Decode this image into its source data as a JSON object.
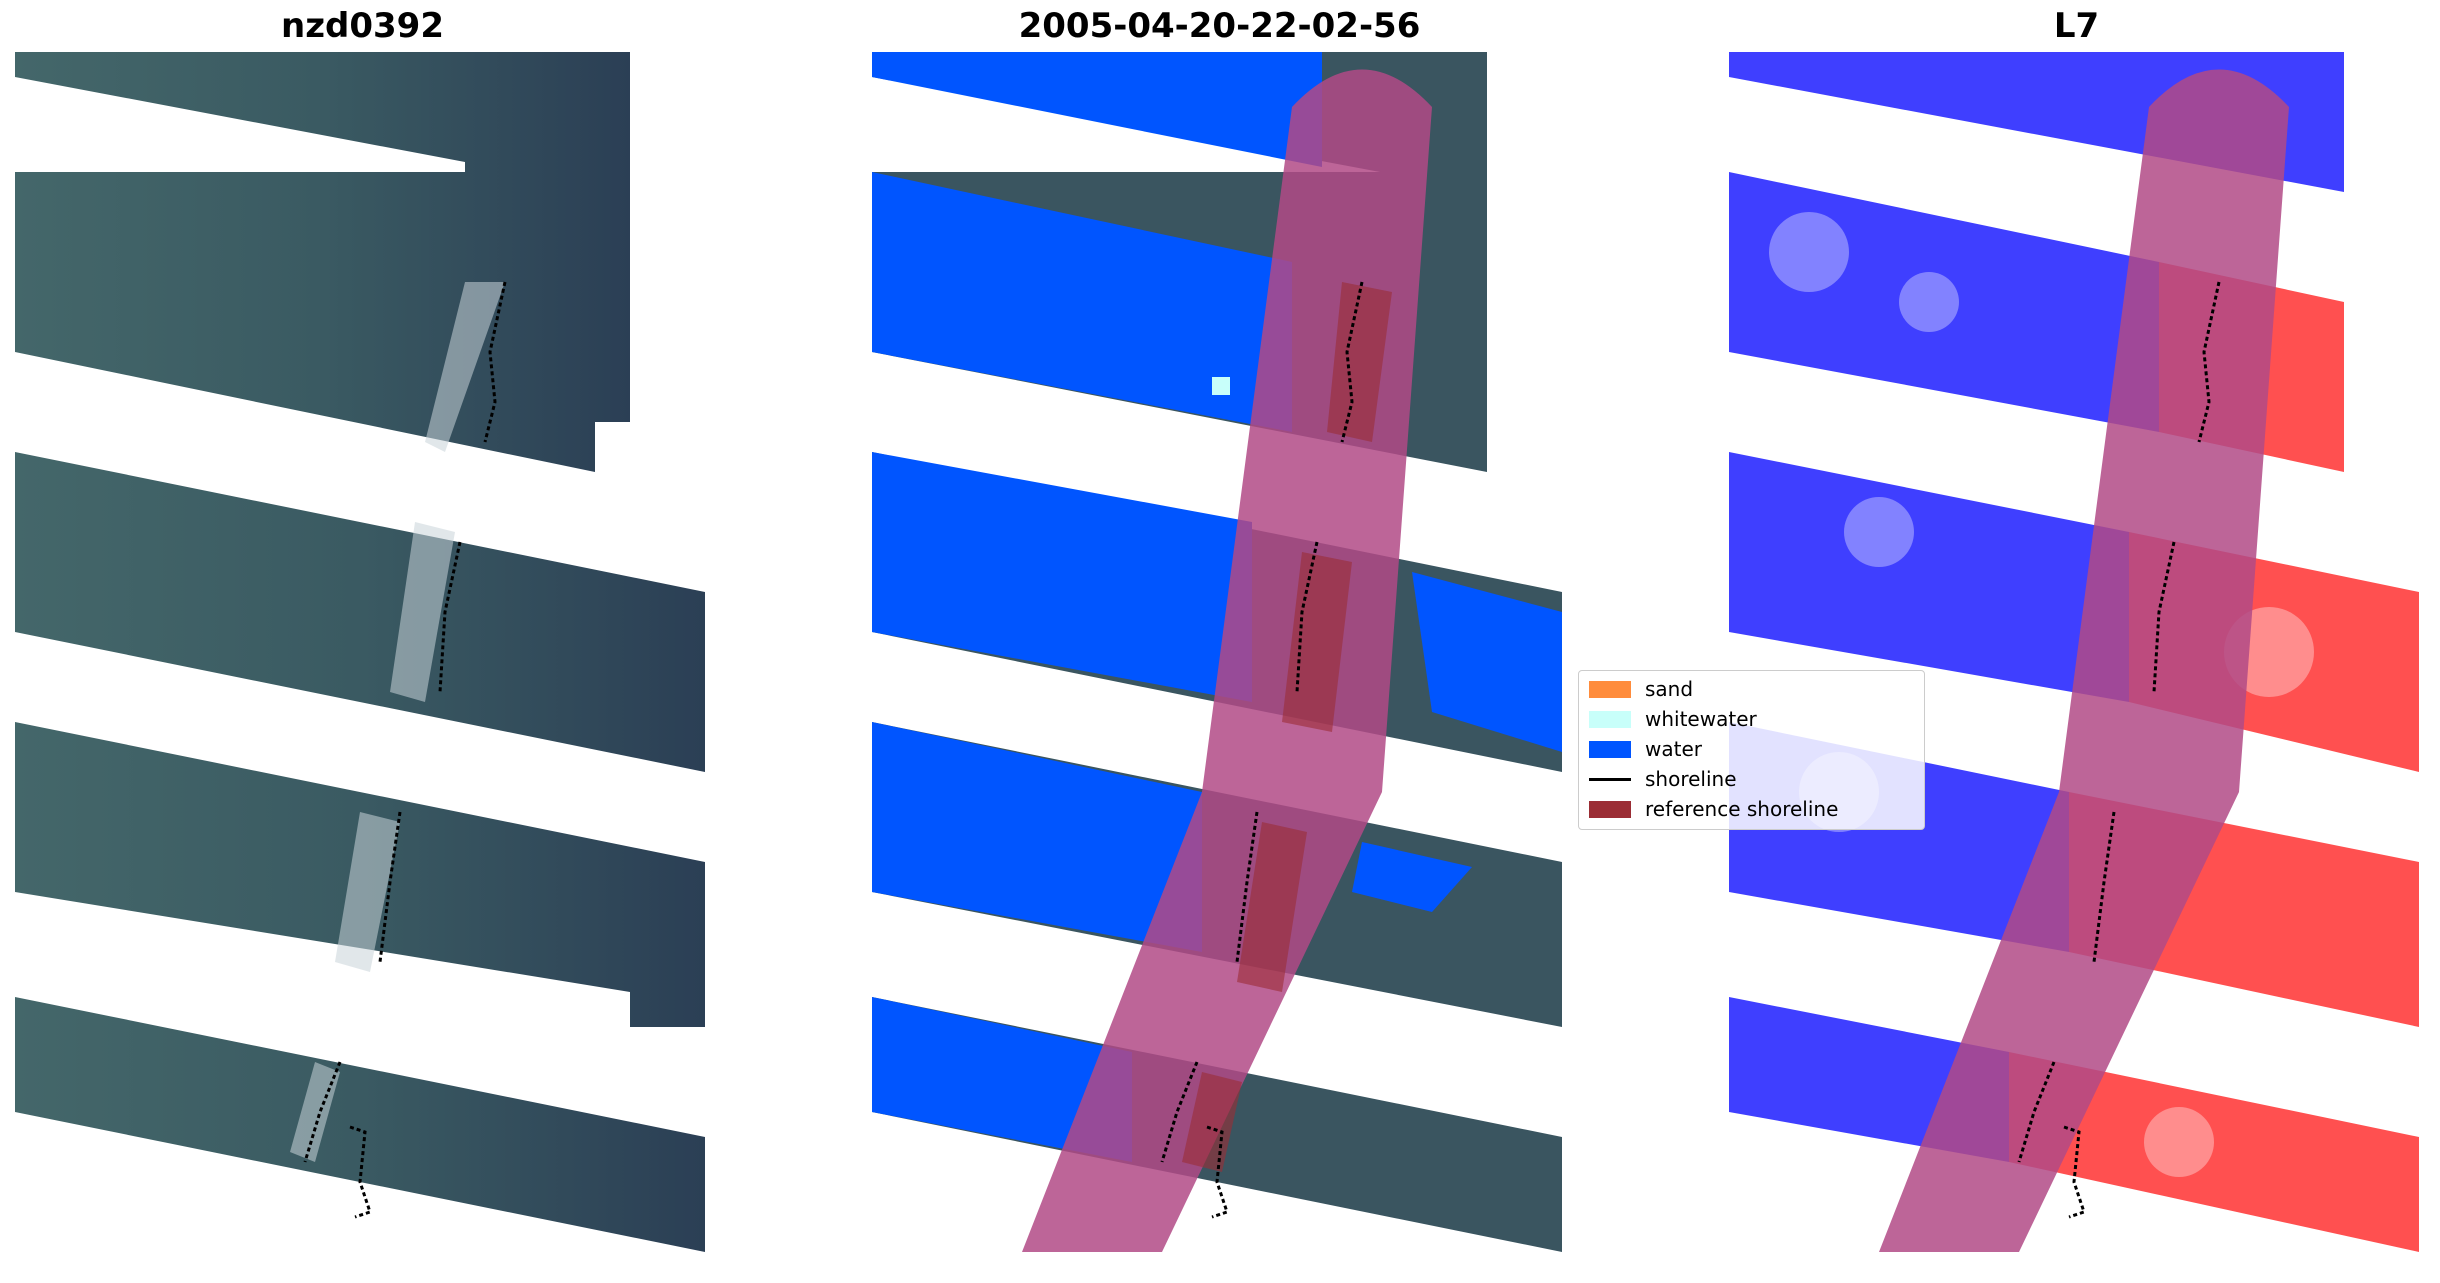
{
  "panels": [
    {
      "title": "nzd0392"
    },
    {
      "title": "2005-04-20-22-02-56"
    },
    {
      "title": "L7"
    }
  ],
  "legend": {
    "items": [
      {
        "label": "sand",
        "color": "#ff8c3c"
      },
      {
        "label": "whitewater",
        "color": "#c8fffa"
      },
      {
        "label": "water",
        "color": "#0055ff"
      },
      {
        "label": "shoreline",
        "color": "#000000"
      },
      {
        "label": "reference shoreline",
        "color": "#9b2d35"
      }
    ]
  },
  "colors": {
    "reference_buffer": "#b14a86",
    "rgb_land": "#2d4458",
    "rgb_sea": "#3e5f61",
    "index_positive": "#ff0000",
    "index_negative": "#0000ff"
  }
}
